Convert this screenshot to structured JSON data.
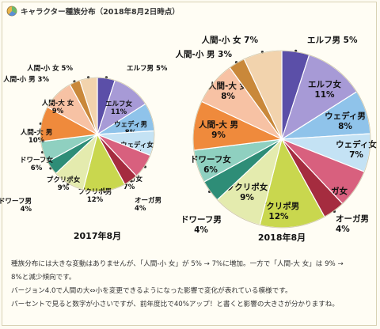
{
  "header": {
    "title": "キャラクター種族分布（2018年8月2日時点）",
    "icon": "pie-chart-icon"
  },
  "chart_data": [
    {
      "type": "pie",
      "title": "2017年8月",
      "slices": [
        {
          "label": "エルフ男 5%",
          "value": 5,
          "color": "#5b4fa8"
        },
        {
          "label": "エルフ女\n11%",
          "value": 11,
          "color": "#a79ad6"
        },
        {
          "label": "ウェディ男\n8%",
          "value": 8,
          "color": "#8fc3ea"
        },
        {
          "label": "ウェディ女\n7%",
          "value": 7,
          "color": "#c4e2f4"
        },
        {
          "label": "オーガ女\n7%",
          "value": 7,
          "color": "#d8607e"
        },
        {
          "label": "オーガ男\n4%",
          "value": 4,
          "color": "#a52c3f"
        },
        {
          "label": "プクリポ男\n12%",
          "value": 12,
          "color": "#c9d74e"
        },
        {
          "label": "プクリポ女\n9%",
          "value": 9,
          "color": "#e4ebae"
        },
        {
          "label": "ドワーフ男\n4%",
          "value": 4,
          "color": "#2e8d77"
        },
        {
          "label": "ドワーフ女\n6%",
          "value": 6,
          "color": "#8fd0c0"
        },
        {
          "label": "人間-大 男\n10%",
          "value": 10,
          "color": "#ef8a3c"
        },
        {
          "label": "人間-大 女\n9%",
          "value": 9,
          "color": "#f7c2a4"
        },
        {
          "label": "人間-小 男 3%",
          "value": 3,
          "color": "#c9883a"
        },
        {
          "label": "人間-小 女 5%",
          "value": 5,
          "color": "#f2d3ad"
        }
      ]
    },
    {
      "type": "pie",
      "title": "2018年8月",
      "slices": [
        {
          "label": "エルフ男 5%",
          "value": 5,
          "color": "#5b4fa8"
        },
        {
          "label": "エルフ女\n11%",
          "value": 11,
          "color": "#a79ad6"
        },
        {
          "label": "ウェディ男\n8%",
          "value": 8,
          "color": "#8fc3ea"
        },
        {
          "label": "ウェディ女\n7%",
          "value": 7,
          "color": "#c4e2f4"
        },
        {
          "label": "オーガ女\n7%",
          "value": 7,
          "color": "#d8607e"
        },
        {
          "label": "オーガ男\n4%",
          "value": 4,
          "color": "#a52c3f"
        },
        {
          "label": "プクリポ男\n12%",
          "value": 12,
          "color": "#c9d74e"
        },
        {
          "label": "プクリポ女\n9%",
          "value": 9,
          "color": "#e4ebae"
        },
        {
          "label": "ドワーフ男\n4%",
          "value": 4,
          "color": "#2e8d77"
        },
        {
          "label": "ドワーフ女\n6%",
          "value": 6,
          "color": "#8fd0c0"
        },
        {
          "label": "人間-大 男\n9%",
          "value": 9,
          "color": "#ef8a3c"
        },
        {
          "label": "人間-大 女\n8%",
          "value": 8,
          "color": "#f7c2a4"
        },
        {
          "label": "人間-小 男 3%",
          "value": 3,
          "color": "#c9883a"
        },
        {
          "label": "人間-小 女 7%",
          "value": 7,
          "color": "#f2d3ad"
        }
      ]
    }
  ],
  "description": [
    "種族分布には大きな変動はありませんが、「人間-小 女」が 5% → 7%に増加。一方で「人間-大 女」は 9% →",
    "8%と減少傾向です。",
    "バージョン4.0で人間の大⇔小を変更できるようになった影響で変化が表れている模様です。",
    "パーセントで見ると数字が小さいですが、前年度比で40%アップ！と書くと影響の大きさが分かりますね。"
  ]
}
